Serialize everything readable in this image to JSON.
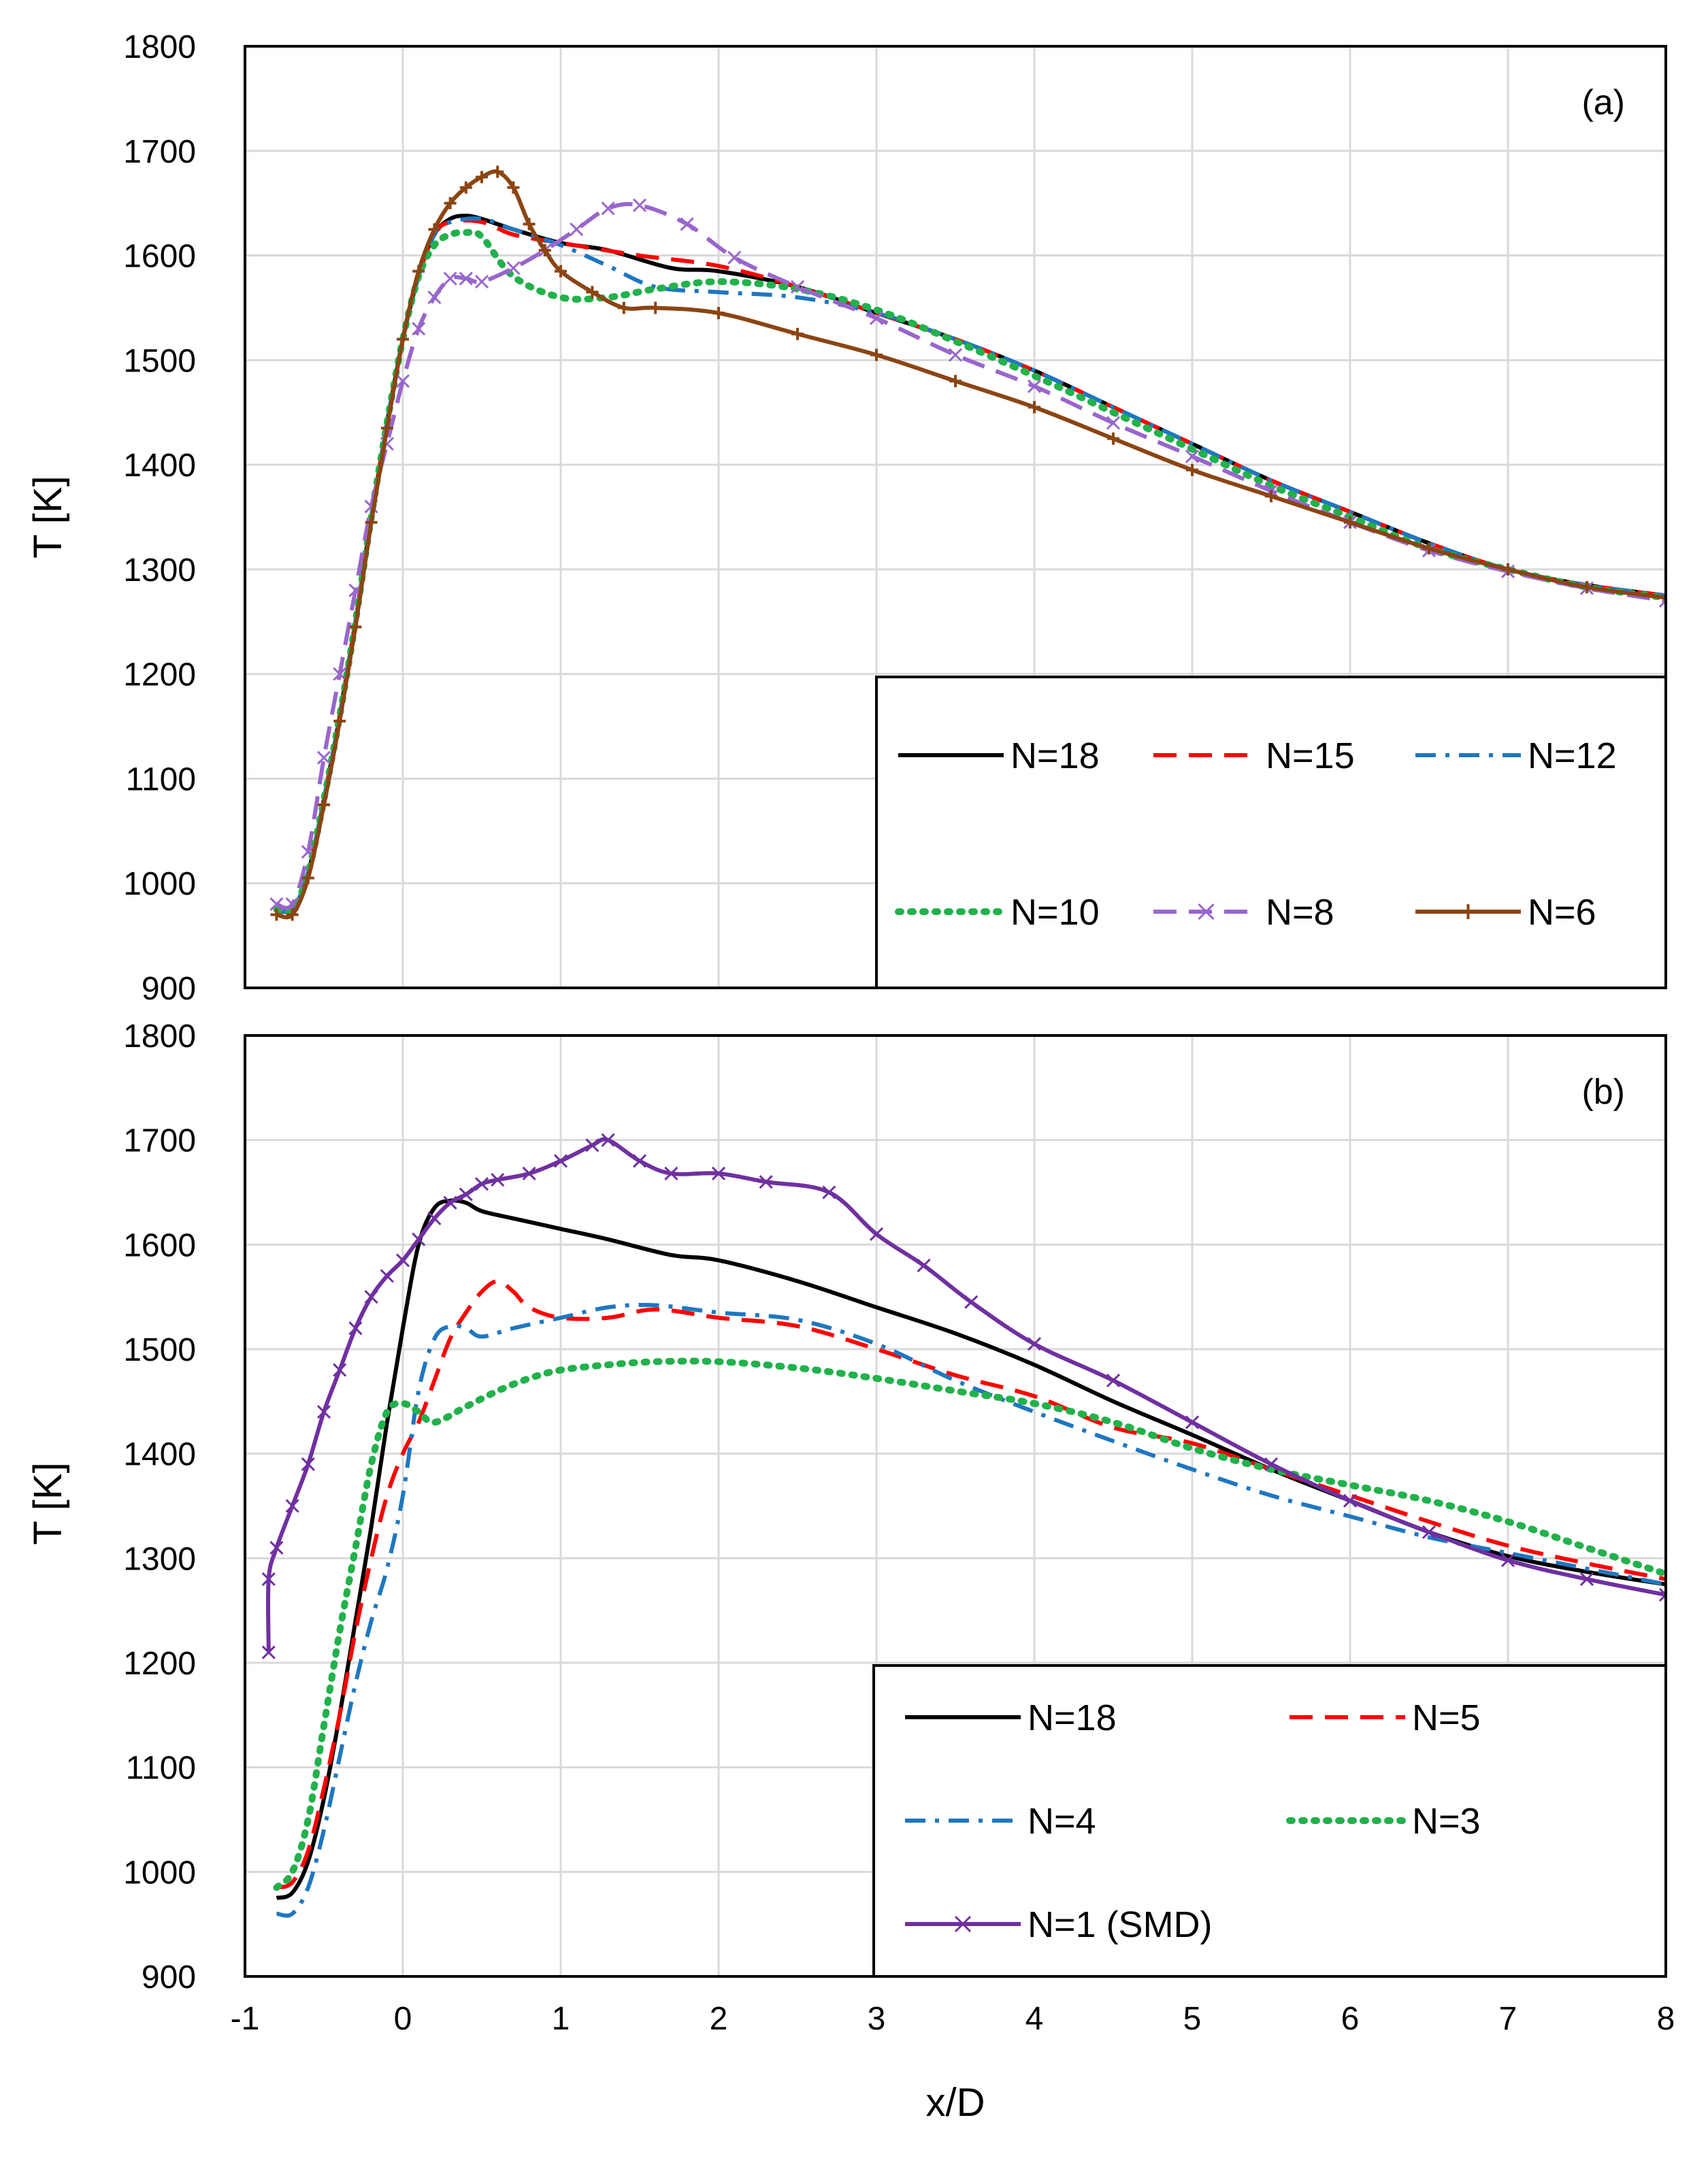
{
  "chart_data": [
    {
      "type": "line",
      "panel_label": "(a)",
      "xlabel": "",
      "ylabel": "T [K]",
      "xlim": [
        -1,
        8
      ],
      "ylim": [
        900,
        1800
      ],
      "x_ticks": [
        "-1",
        "0",
        "1",
        "2",
        "3",
        "4",
        "5",
        "6",
        "7",
        "8"
      ],
      "y_ticks": [
        "900",
        "1000",
        "1100",
        "1200",
        "1300",
        "1400",
        "1500",
        "1600",
        "1700",
        "1800"
      ],
      "grid": true,
      "legend_position": "bottom-right",
      "series": [
        {
          "name": "N=18",
          "color": "#000000",
          "style": "solid",
          "marker": "none",
          "x": [
            -0.8,
            -0.7,
            -0.6,
            -0.5,
            -0.4,
            -0.3,
            -0.2,
            -0.1,
            0,
            0.1,
            0.2,
            0.3,
            0.4,
            0.5,
            0.7,
            1,
            1.3,
            1.7,
            2,
            2.5,
            3,
            3.5,
            4,
            4.5,
            5,
            5.5,
            6,
            6.5,
            7,
            7.5,
            8
          ],
          "y": [
            975,
            975,
            1010,
            1080,
            1160,
            1250,
            1350,
            1440,
            1520,
            1580,
            1620,
            1635,
            1638,
            1635,
            1625,
            1612,
            1605,
            1588,
            1585,
            1570,
            1545,
            1520,
            1490,
            1455,
            1420,
            1385,
            1355,
            1325,
            1300,
            1285,
            1275
          ]
        },
        {
          "name": "N=15",
          "color": "#ff0000",
          "style": "dash",
          "marker": "none",
          "x": [
            -0.8,
            -0.7,
            -0.6,
            -0.5,
            -0.4,
            -0.3,
            -0.2,
            -0.1,
            0,
            0.1,
            0.2,
            0.3,
            0.5,
            0.7,
            1,
            1.5,
            2,
            2.5,
            3,
            3.5,
            4,
            4.5,
            5,
            5.5,
            6,
            6.5,
            7,
            7.5,
            8
          ],
          "y": [
            975,
            975,
            1010,
            1080,
            1160,
            1250,
            1350,
            1440,
            1520,
            1580,
            1620,
            1632,
            1632,
            1620,
            1612,
            1600,
            1590,
            1570,
            1545,
            1520,
            1490,
            1455,
            1420,
            1385,
            1355,
            1325,
            1300,
            1285,
            1275
          ]
        },
        {
          "name": "N=12",
          "color": "#1f77c0",
          "style": "dashdot",
          "marker": "none",
          "x": [
            -0.8,
            -0.7,
            -0.6,
            -0.5,
            -0.4,
            -0.3,
            -0.2,
            -0.1,
            0,
            0.1,
            0.2,
            0.3,
            0.5,
            0.7,
            1,
            1.3,
            1.6,
            2,
            2.5,
            3,
            3.5,
            4,
            4.5,
            5,
            5.5,
            6,
            6.5,
            7,
            7.5,
            8
          ],
          "y": [
            975,
            975,
            1010,
            1080,
            1160,
            1250,
            1350,
            1440,
            1520,
            1580,
            1620,
            1632,
            1635,
            1625,
            1610,
            1590,
            1570,
            1565,
            1560,
            1545,
            1520,
            1490,
            1455,
            1420,
            1385,
            1355,
            1325,
            1300,
            1285,
            1275
          ]
        },
        {
          "name": "N=10",
          "color": "#22b14c",
          "style": "dot",
          "marker": "none",
          "x": [
            -0.8,
            -0.7,
            -0.6,
            -0.5,
            -0.4,
            -0.3,
            -0.2,
            -0.1,
            0,
            0.1,
            0.2,
            0.3,
            0.4,
            0.5,
            0.7,
            1,
            1.3,
            1.6,
            2,
            2.5,
            3,
            3.5,
            4,
            4.5,
            5,
            5.5,
            6,
            6.5,
            7,
            7.5,
            8
          ],
          "y": [
            975,
            975,
            1010,
            1080,
            1160,
            1250,
            1350,
            1440,
            1520,
            1580,
            1610,
            1620,
            1622,
            1618,
            1580,
            1560,
            1560,
            1568,
            1575,
            1568,
            1548,
            1518,
            1485,
            1450,
            1415,
            1380,
            1350,
            1320,
            1300,
            1283,
            1273
          ]
        },
        {
          "name": "N=8",
          "color": "#9966cc",
          "style": "dash",
          "marker": "x",
          "x": [
            -0.8,
            -0.7,
            -0.6,
            -0.5,
            -0.4,
            -0.3,
            -0.2,
            -0.1,
            0,
            0.1,
            0.2,
            0.3,
            0.4,
            0.5,
            0.7,
            0.9,
            1.1,
            1.3,
            1.5,
            1.8,
            2.1,
            2.5,
            3,
            3.5,
            4,
            4.5,
            5,
            5.5,
            6,
            6.5,
            7,
            7.5,
            8
          ],
          "y": [
            980,
            980,
            1030,
            1120,
            1200,
            1280,
            1360,
            1420,
            1480,
            1530,
            1560,
            1578,
            1578,
            1575,
            1588,
            1605,
            1625,
            1645,
            1648,
            1630,
            1598,
            1570,
            1540,
            1505,
            1475,
            1440,
            1408,
            1375,
            1345,
            1318,
            1298,
            1282,
            1270
          ]
        },
        {
          "name": "N=6",
          "color": "#8b4513",
          "style": "solid",
          "marker": "plus",
          "x": [
            -0.8,
            -0.7,
            -0.6,
            -0.5,
            -0.4,
            -0.3,
            -0.2,
            -0.1,
            0,
            0.1,
            0.2,
            0.3,
            0.4,
            0.5,
            0.6,
            0.7,
            0.8,
            0.9,
            1,
            1.2,
            1.4,
            1.6,
            2,
            2.5,
            3,
            3.5,
            4,
            4.5,
            5,
            5.5,
            6,
            6.5,
            7,
            7.5,
            8
          ],
          "y": [
            970,
            970,
            1005,
            1075,
            1155,
            1245,
            1345,
            1435,
            1520,
            1585,
            1625,
            1650,
            1665,
            1675,
            1680,
            1665,
            1630,
            1605,
            1585,
            1565,
            1550,
            1550,
            1545,
            1525,
            1505,
            1480,
            1455,
            1425,
            1395,
            1370,
            1345,
            1320,
            1300,
            1283,
            1273
          ]
        }
      ]
    },
    {
      "type": "line",
      "panel_label": "(b)",
      "xlabel": "x/D",
      "ylabel": "T [K]",
      "xlim": [
        -1,
        8
      ],
      "ylim": [
        900,
        1800
      ],
      "x_ticks": [
        "-1",
        "0",
        "1",
        "2",
        "3",
        "4",
        "5",
        "6",
        "7",
        "8"
      ],
      "y_ticks": [
        "900",
        "1000",
        "1100",
        "1200",
        "1300",
        "1400",
        "1500",
        "1600",
        "1700",
        "1800"
      ],
      "grid": true,
      "legend_position": "bottom-right",
      "series": [
        {
          "name": "N=18",
          "color": "#000000",
          "style": "solid",
          "marker": "none",
          "x": [
            -0.8,
            -0.7,
            -0.6,
            -0.5,
            -0.4,
            -0.3,
            -0.2,
            -0.1,
            0,
            0.1,
            0.2,
            0.3,
            0.4,
            0.5,
            0.7,
            1,
            1.3,
            1.7,
            2,
            2.5,
            3,
            3.5,
            4,
            4.5,
            5,
            5.5,
            6,
            6.5,
            7,
            7.5,
            8
          ],
          "y": [
            975,
            980,
            1010,
            1070,
            1150,
            1240,
            1330,
            1430,
            1520,
            1600,
            1635,
            1642,
            1640,
            1632,
            1625,
            1615,
            1605,
            1590,
            1585,
            1565,
            1540,
            1515,
            1485,
            1450,
            1418,
            1385,
            1355,
            1325,
            1302,
            1287,
            1275
          ]
        },
        {
          "name": "N=5",
          "color": "#ff0000",
          "style": "dash",
          "marker": "none",
          "x": [
            -0.8,
            -0.7,
            -0.6,
            -0.5,
            -0.4,
            -0.3,
            -0.2,
            -0.1,
            0,
            0.1,
            0.2,
            0.3,
            0.4,
            0.5,
            0.6,
            0.7,
            0.8,
            1,
            1.3,
            1.6,
            2,
            2.5,
            3,
            3.5,
            4,
            4.5,
            5,
            5.5,
            6,
            6.5,
            7,
            7.5,
            8
          ],
          "y": [
            985,
            990,
            1020,
            1080,
            1150,
            1230,
            1300,
            1360,
            1400,
            1430,
            1470,
            1510,
            1535,
            1555,
            1565,
            1555,
            1540,
            1530,
            1530,
            1538,
            1530,
            1522,
            1500,
            1475,
            1455,
            1425,
            1410,
            1385,
            1360,
            1335,
            1312,
            1295,
            1280
          ]
        },
        {
          "name": "N=4",
          "color": "#1f77c0",
          "style": "dashdot",
          "marker": "none",
          "x": [
            -0.8,
            -0.7,
            -0.6,
            -0.5,
            -0.4,
            -0.3,
            -0.2,
            -0.1,
            0,
            0.1,
            0.2,
            0.3,
            0.4,
            0.5,
            0.7,
            1,
            1.3,
            1.6,
            2,
            2.5,
            3,
            3.5,
            4,
            4.5,
            5,
            5.5,
            6,
            6.5,
            7,
            7.5,
            8
          ],
          "y": [
            960,
            960,
            985,
            1040,
            1110,
            1180,
            1240,
            1290,
            1360,
            1460,
            1510,
            1522,
            1520,
            1512,
            1520,
            1530,
            1540,
            1542,
            1535,
            1528,
            1505,
            1470,
            1440,
            1412,
            1385,
            1360,
            1340,
            1320,
            1305,
            1290,
            1275
          ]
        },
        {
          "name": "N=3",
          "color": "#22b14c",
          "style": "dot",
          "marker": "none",
          "x": [
            -0.8,
            -0.7,
            -0.6,
            -0.5,
            -0.4,
            -0.3,
            -0.2,
            -0.1,
            0,
            0.1,
            0.2,
            0.4,
            0.6,
            0.8,
            1,
            1.3,
            1.6,
            2,
            2.5,
            3,
            3.5,
            4,
            4.5,
            5,
            5.5,
            6,
            6.5,
            7,
            7.5,
            8
          ],
          "y": [
            985,
            1000,
            1050,
            1140,
            1230,
            1310,
            1390,
            1440,
            1448,
            1440,
            1430,
            1445,
            1460,
            1472,
            1480,
            1485,
            1488,
            1488,
            1482,
            1472,
            1460,
            1448,
            1430,
            1405,
            1385,
            1370,
            1355,
            1335,
            1310,
            1285
          ]
        },
        {
          "name": "N=1 (SMD)",
          "color": "#7030a0",
          "style": "solid",
          "marker": "x",
          "x": [
            -0.85,
            -0.85,
            -0.8,
            -0.7,
            -0.6,
            -0.5,
            -0.4,
            -0.3,
            -0.2,
            -0.1,
            0,
            0.1,
            0.2,
            0.3,
            0.4,
            0.5,
            0.6,
            0.8,
            1,
            1.2,
            1.3,
            1.5,
            1.7,
            2,
            2.3,
            2.7,
            3,
            3.3,
            3.6,
            4,
            4.5,
            5,
            5.5,
            6,
            6.5,
            7,
            7.5,
            8
          ],
          "y": [
            1210,
            1280,
            1310,
            1350,
            1390,
            1440,
            1480,
            1520,
            1550,
            1570,
            1585,
            1605,
            1625,
            1640,
            1648,
            1658,
            1662,
            1668,
            1680,
            1695,
            1700,
            1680,
            1668,
            1668,
            1660,
            1650,
            1610,
            1580,
            1545,
            1505,
            1470,
            1430,
            1390,
            1355,
            1325,
            1298,
            1280,
            1265
          ]
        }
      ]
    }
  ]
}
